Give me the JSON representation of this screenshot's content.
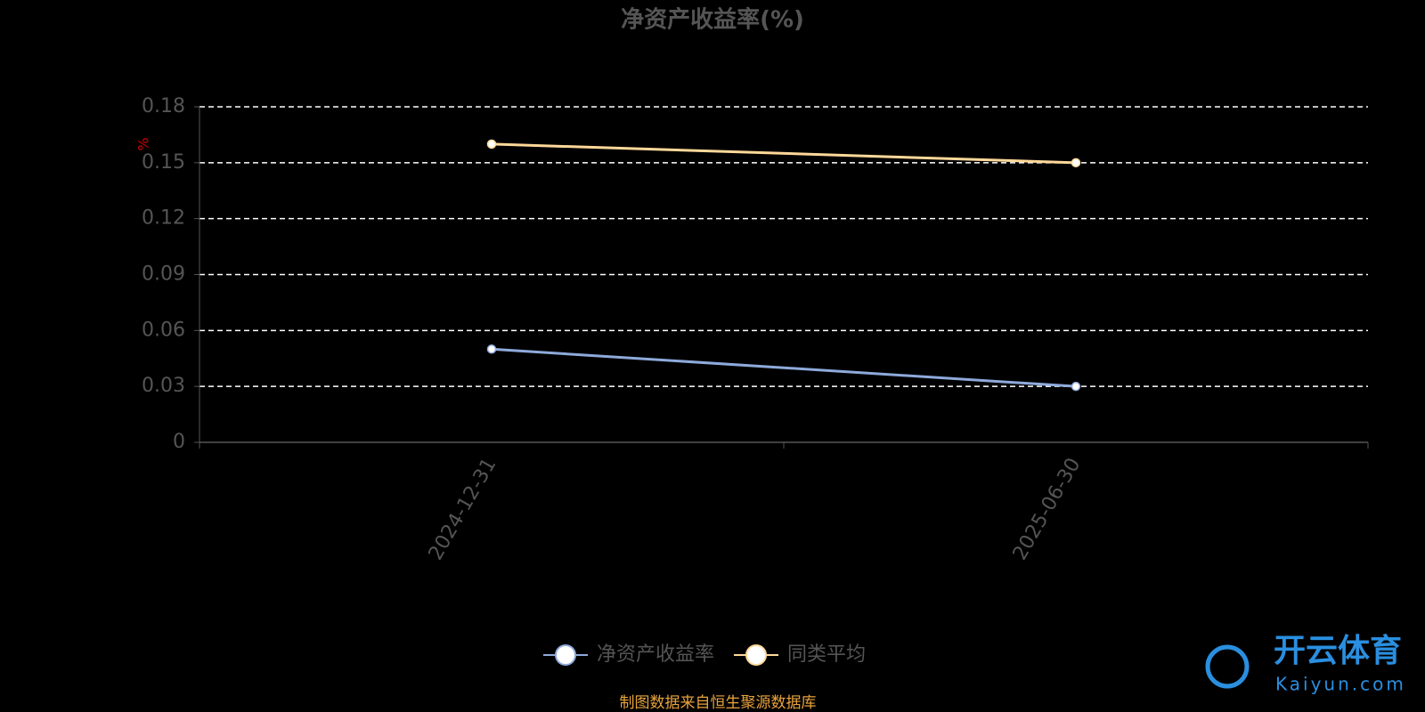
{
  "chart_data": {
    "type": "line",
    "title": "净资产收益率(%)",
    "y_label": "%",
    "categories": [
      "2024-12-31",
      "2025-06-30"
    ],
    "series": [
      {
        "name": "净资产收益率",
        "color": "#8eaadb",
        "values": [
          0.05,
          0.03
        ]
      },
      {
        "name": "同类平均",
        "color": "#ffd899",
        "values": [
          0.16,
          0.15
        ]
      }
    ],
    "ylim": [
      0,
      0.18
    ],
    "yticks": [
      0,
      0.03,
      0.06,
      0.09,
      0.12,
      0.15,
      0.18
    ],
    "grid": true,
    "legend": "bottom",
    "source": "制图数据来自恒生聚源数据库",
    "watermark": {
      "brand": "开云体育",
      "site": "Kaiyun.com"
    }
  }
}
